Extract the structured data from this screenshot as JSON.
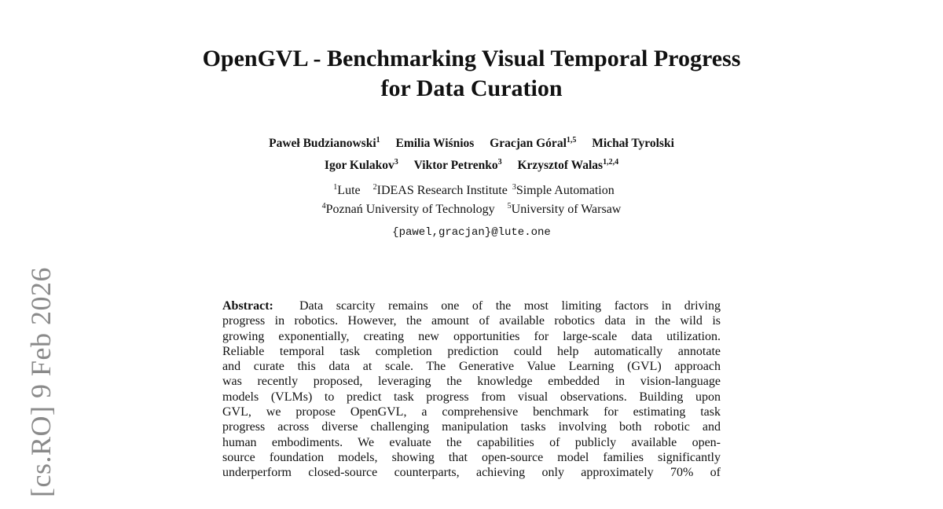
{
  "title": [
    "OpenGVL - Benchmarking Visual Temporal Progress",
    "for Data Curation"
  ],
  "authors": [
    {
      "name": "Paweł Budzianowski",
      "aff": "1"
    },
    {
      "name": "Emilia Wiśnios",
      "aff": ""
    },
    {
      "name": "Gracjan Góral",
      "aff": "1,5"
    },
    {
      "name": "Michał Tyrolski",
      "aff": ""
    },
    {
      "name": "Igor Kulakov",
      "aff": "3"
    },
    {
      "name": "Viktor Petrenko",
      "aff": "3"
    },
    {
      "name": "Krzysztof Walas",
      "aff": "1,2,4"
    }
  ],
  "affiliations": [
    {
      "num": "1",
      "name": "Lute"
    },
    {
      "num": "2",
      "name": "IDEAS Research Institute"
    },
    {
      "num": "3",
      "name": "Simple Automation"
    },
    {
      "num": "4",
      "name": "Poznań University of Technology"
    },
    {
      "num": "5",
      "name": "University of Warsaw"
    }
  ],
  "email": "{pawel,gracjan}@lute.one",
  "arxiv_stamp": "[cs.RO]  9 Feb 2026",
  "abstract": {
    "label": "Abstract:",
    "lines": [
      "Data scarcity remains one of the most limiting factors in driving",
      "progress in robotics. However, the amount of available robotics data in the wild is",
      "growing exponentially, creating new opportunities for large-scale data utilization.",
      "Reliable temporal task completion prediction could help automatically annotate",
      "and curate this data at scale.  The Generative Value Learning (GVL) approach",
      "was recently proposed, leveraging the knowledge embedded in vision-language",
      "models (VLMs) to predict task progress from visual observations. Building upon",
      "GVL, we propose OpenGVL, a comprehensive benchmark for estimating task",
      "progress across diverse challenging manipulation tasks involving both robotic and",
      "human embodiments.  We evaluate the capabilities of publicly available open-",
      "source foundation models, showing that open-source model families significantly",
      "underperform closed-source counterparts, achieving only approximately 70% of"
    ]
  }
}
